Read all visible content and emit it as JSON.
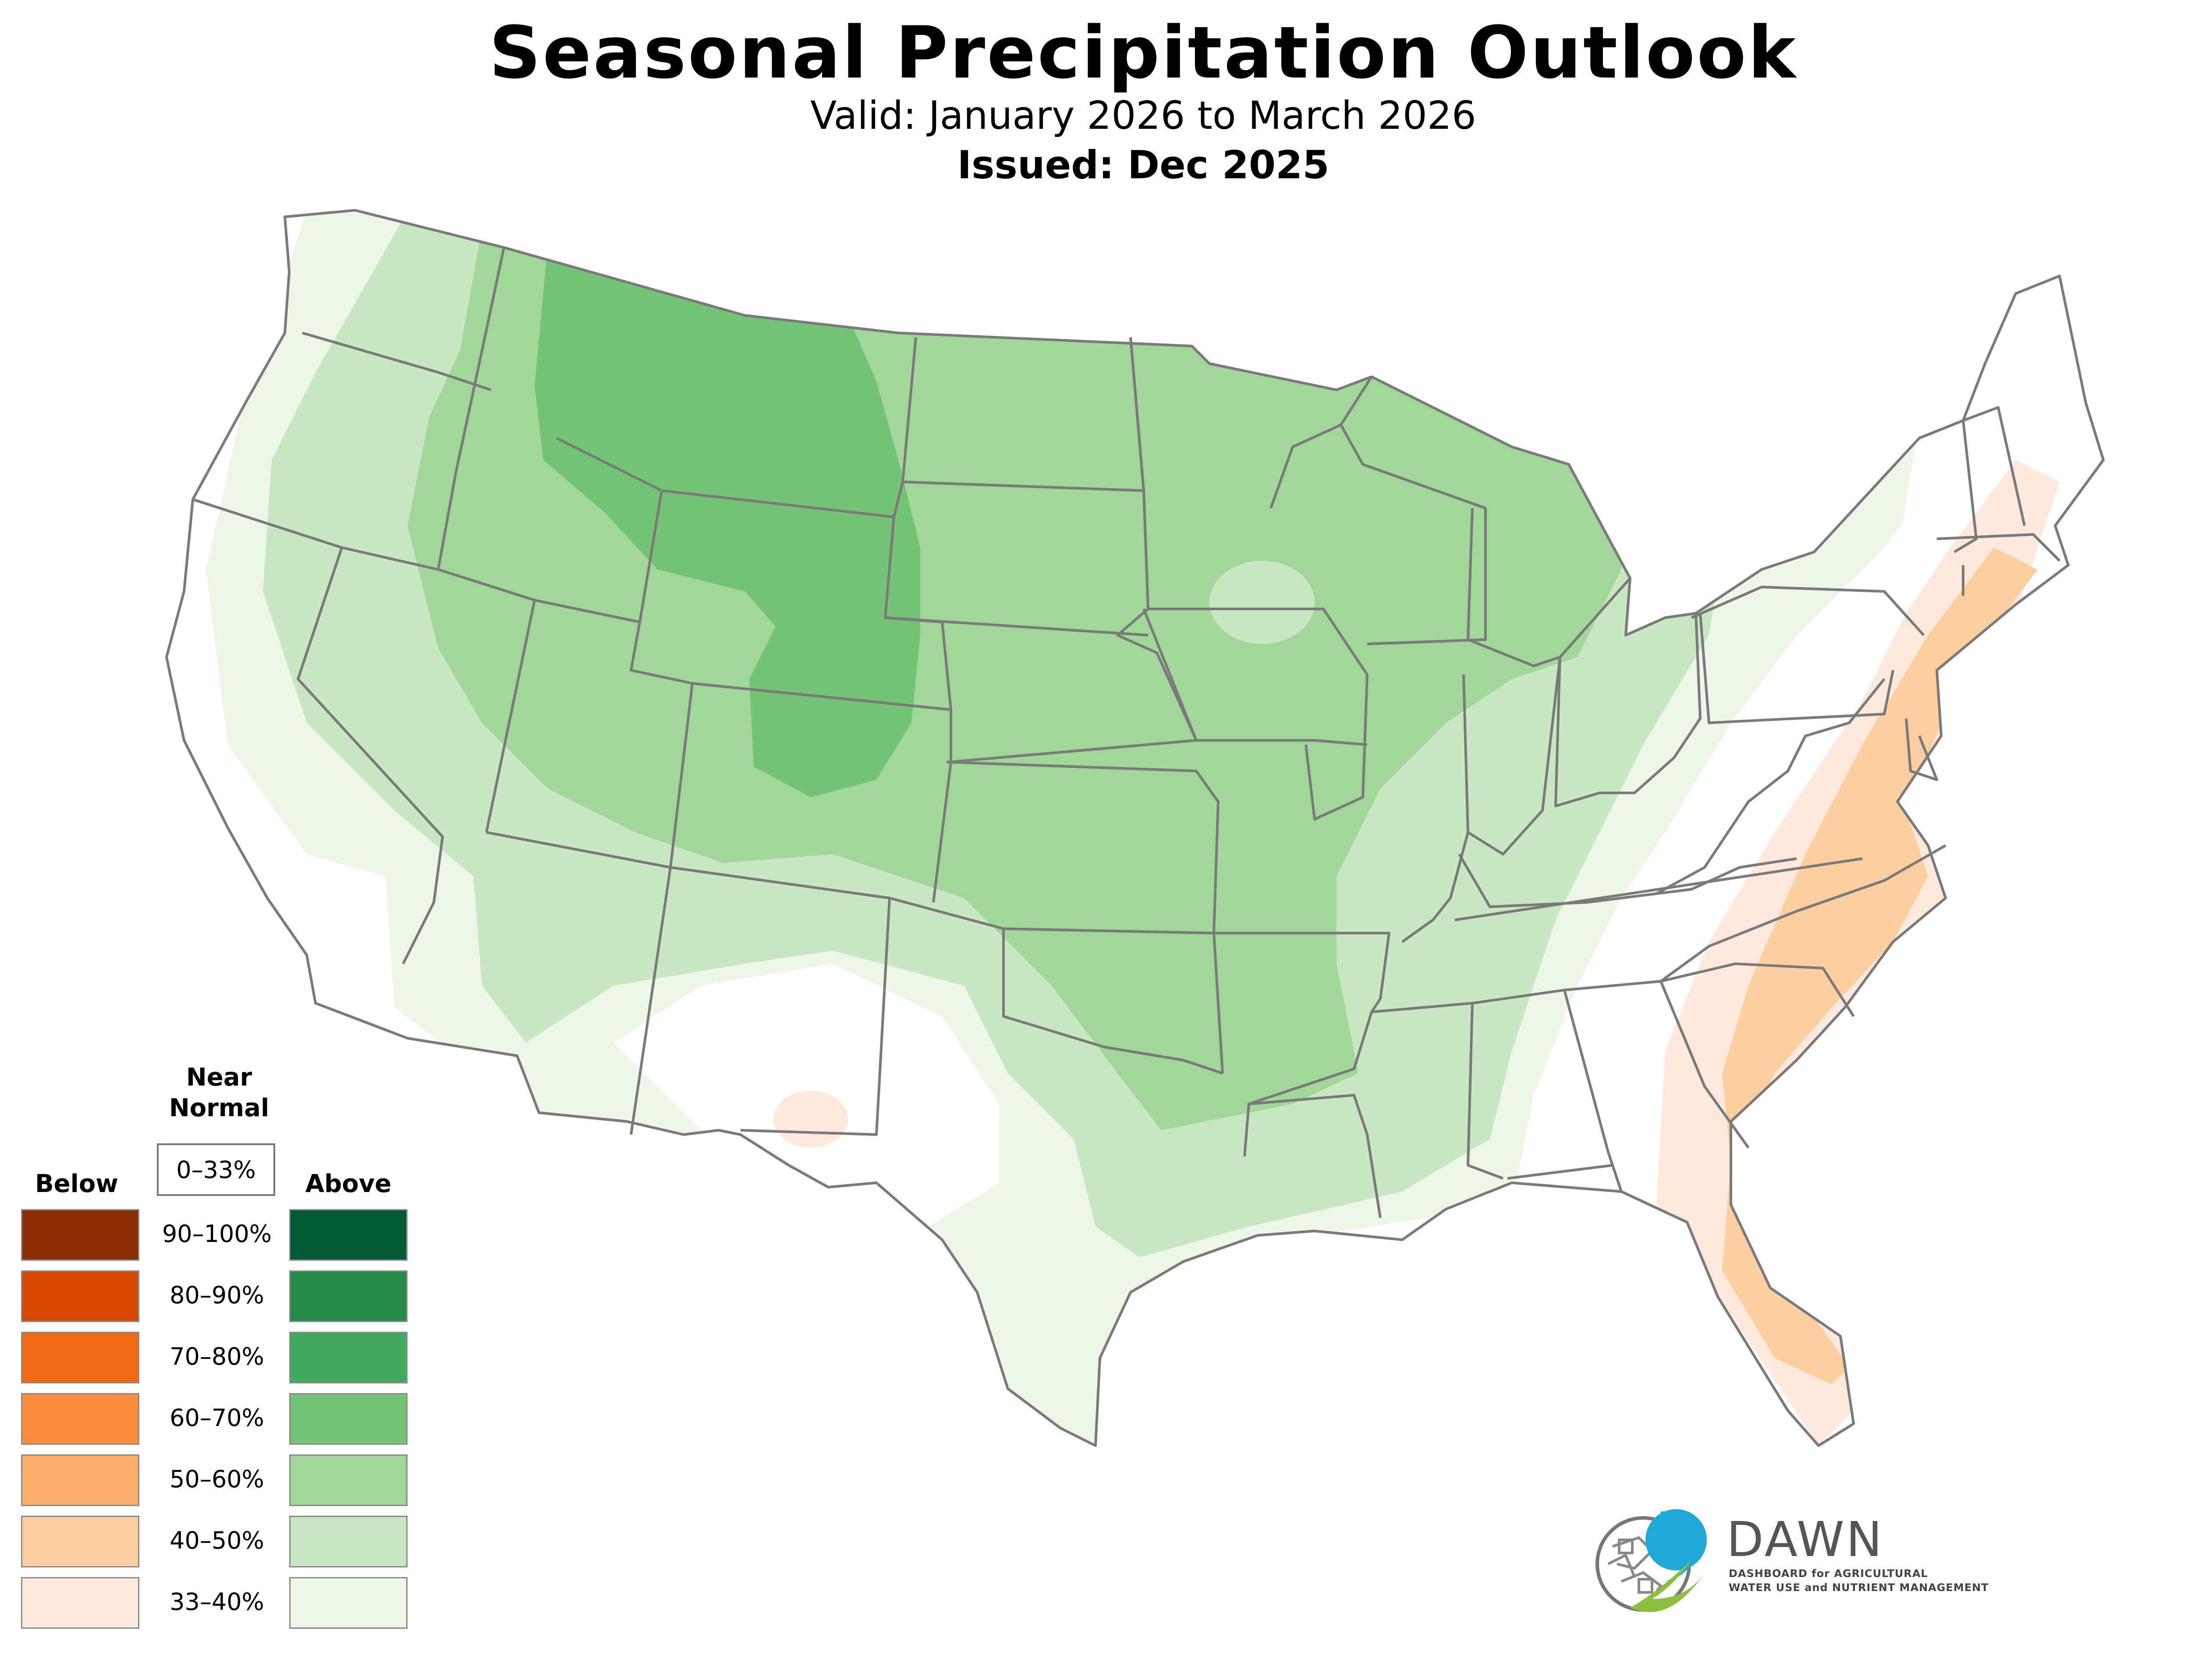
{
  "title": "Seasonal Precipitation Outlook",
  "subtitle": "Valid: January 2026 to March 2026",
  "issued": "Issued: Dec 2025",
  "colors": {
    "state_border": "#7a7a7a",
    "above": [
      "#edf7e8",
      "#c8e8c1",
      "#a1d799",
      "#74c476",
      "#41ab5d",
      "#238b45",
      "#005a32"
    ],
    "below": [
      "#fee9dc",
      "#fdcf9e",
      "#fdae6b",
      "#fd8d3c",
      "#f16913",
      "#d94801",
      "#8c2d04"
    ]
  },
  "legend": {
    "near_normal_heading": "Near\nNormal",
    "near_normal_label": "0–33%",
    "below_heading": "Below",
    "above_heading": "Above",
    "bins": [
      "90–100%",
      "80–90%",
      "70–80%",
      "60–70%",
      "50–60%",
      "40–50%",
      "33–40%"
    ]
  },
  "logo": {
    "name": "DAWN",
    "tagline_line1": "DASHBOARD for AGRICULTURAL",
    "tagline_line2": "WATER USE and NUTRIENT MANAGEMENT"
  }
}
